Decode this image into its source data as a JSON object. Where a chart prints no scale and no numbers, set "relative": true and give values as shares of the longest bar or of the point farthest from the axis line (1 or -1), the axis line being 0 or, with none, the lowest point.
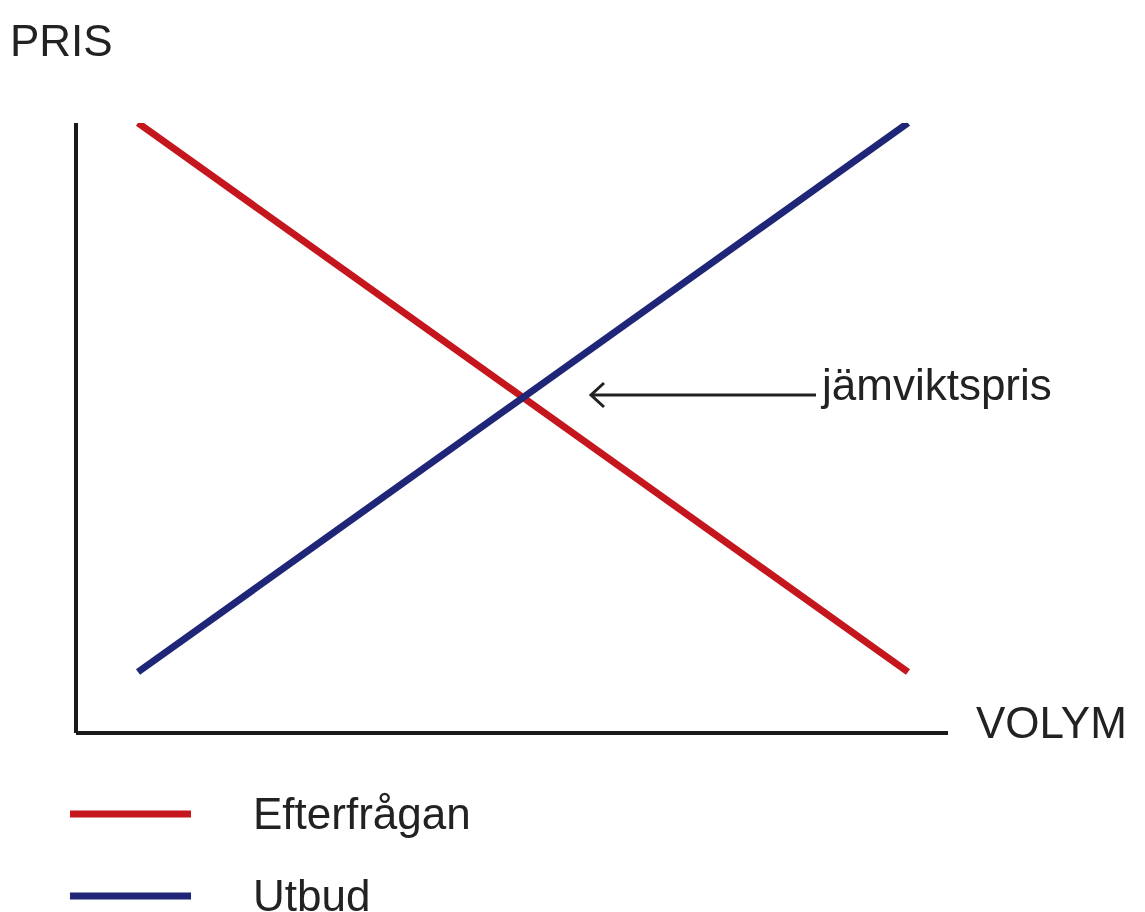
{
  "chart_data": {
    "type": "line",
    "relative": true,
    "xlabel": "VOLYM",
    "ylabel": "PRIS",
    "categories": [
      null,
      null
    ],
    "series": [
      {
        "name": "Efterfrågan",
        "color": "#c4161c",
        "values": [
          1,
          0.1
        ]
      },
      {
        "name": "Utbud",
        "color": "#1f2677",
        "values": [
          0.1,
          1
        ]
      }
    ],
    "annotations": [
      "jämviktspris"
    ],
    "legend": "bottom",
    "grid": false,
    "marker": "none",
    "line_style": "solid"
  }
}
